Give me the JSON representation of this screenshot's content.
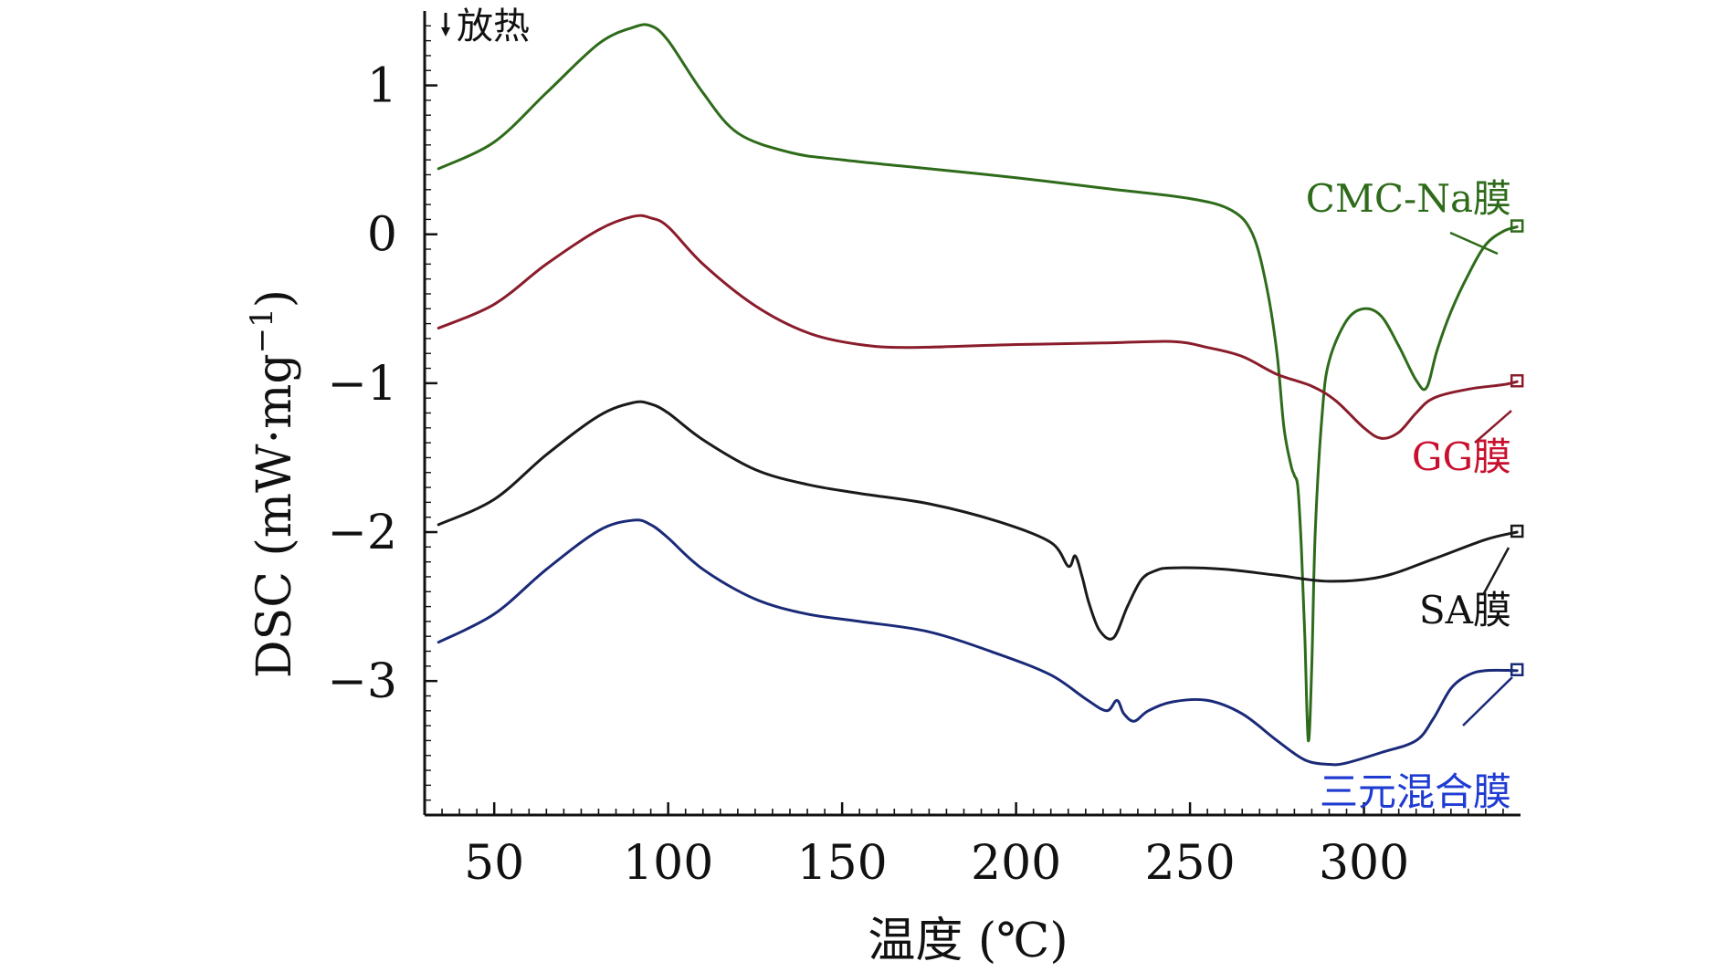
{
  "chart_data": {
    "type": "line",
    "xlabel": "温度 (℃)",
    "ylabel": "DSC (mW·mg",
    "ylabel_superscript": "−1",
    "ylabel_close": ")",
    "annotation": "放热",
    "xlim": [
      30,
      345
    ],
    "ylim": [
      -3.9,
      1.5
    ],
    "x_ticks": [
      50,
      100,
      150,
      200,
      250,
      300
    ],
    "y_ticks": [
      1,
      0,
      -1,
      -2,
      -3
    ],
    "y_tick_labels": [
      "1",
      "0",
      "−1",
      "−2",
      "−3"
    ],
    "grid": false,
    "series": [
      {
        "name": "CMC-Na膜",
        "color": "#2e6b1a",
        "label_color": "#2e6b1a",
        "x": [
          34,
          50,
          65,
          80,
          90,
          95,
          100,
          110,
          120,
          135,
          150,
          175,
          200,
          225,
          250,
          262,
          268,
          272,
          275,
          277,
          279,
          280,
          281,
          282,
          283,
          284,
          285,
          286,
          288,
          290,
          295,
          300,
          305,
          310,
          315,
          318,
          321,
          325,
          330,
          335,
          340,
          344
        ],
        "y": [
          0.44,
          0.62,
          0.95,
          1.28,
          1.39,
          1.4,
          1.3,
          0.95,
          0.68,
          0.55,
          0.5,
          0.44,
          0.38,
          0.31,
          0.24,
          0.16,
          0.0,
          -0.35,
          -0.8,
          -1.3,
          -1.55,
          -1.62,
          -1.7,
          -2.1,
          -2.7,
          -3.4,
          -2.9,
          -2.0,
          -1.2,
          -0.85,
          -0.58,
          -0.5,
          -0.55,
          -0.75,
          -0.98,
          -1.03,
          -0.78,
          -0.52,
          -0.27,
          -0.07,
          0.02,
          0.05
        ]
      },
      {
        "name": "GG膜",
        "color": "#8a1c2b",
        "label_color": "#c8102e",
        "x": [
          34,
          50,
          65,
          80,
          90,
          95,
          100,
          110,
          125,
          140,
          155,
          170,
          200,
          225,
          245,
          255,
          265,
          275,
          285,
          292,
          300,
          305,
          310,
          315,
          320,
          330,
          340,
          344
        ],
        "y": [
          -0.63,
          -0.47,
          -0.2,
          0.03,
          0.12,
          0.11,
          0.05,
          -0.2,
          -0.48,
          -0.66,
          -0.74,
          -0.76,
          -0.74,
          -0.73,
          -0.72,
          -0.76,
          -0.82,
          -0.94,
          -1.02,
          -1.12,
          -1.3,
          -1.37,
          -1.33,
          -1.2,
          -1.1,
          -1.04,
          -1.01,
          -0.99
        ]
      },
      {
        "name": "SA膜",
        "color": "#1a1a1a",
        "label_color": "#111111",
        "x": [
          34,
          50,
          65,
          80,
          90,
          95,
          100,
          110,
          125,
          140,
          155,
          175,
          195,
          210,
          215,
          217,
          219,
          221,
          224,
          228,
          232,
          236,
          240,
          245,
          260,
          275,
          290,
          305,
          320,
          335,
          344
        ],
        "y": [
          -1.95,
          -1.78,
          -1.48,
          -1.22,
          -1.13,
          -1.14,
          -1.2,
          -1.38,
          -1.58,
          -1.68,
          -1.74,
          -1.81,
          -1.93,
          -2.07,
          -2.23,
          -2.16,
          -2.3,
          -2.48,
          -2.66,
          -2.71,
          -2.5,
          -2.32,
          -2.26,
          -2.24,
          -2.25,
          -2.29,
          -2.33,
          -2.3,
          -2.18,
          -2.05,
          -2.0
        ]
      },
      {
        "name": "三元混合膜",
        "color": "#1a2a78",
        "label_color": "#1f3bd1",
        "x": [
          34,
          50,
          65,
          80,
          90,
          95,
          100,
          110,
          125,
          140,
          155,
          175,
          195,
          210,
          220,
          226,
          229,
          231,
          234,
          238,
          245,
          255,
          265,
          275,
          283,
          290,
          295,
          305,
          315,
          320,
          325,
          330,
          335,
          344
        ],
        "y": [
          -2.74,
          -2.55,
          -2.25,
          -1.99,
          -1.92,
          -1.95,
          -2.04,
          -2.25,
          -2.45,
          -2.55,
          -2.6,
          -2.67,
          -2.82,
          -2.96,
          -3.12,
          -3.2,
          -3.13,
          -3.22,
          -3.27,
          -3.2,
          -3.14,
          -3.13,
          -3.22,
          -3.4,
          -3.53,
          -3.56,
          -3.55,
          -3.48,
          -3.4,
          -3.25,
          -3.05,
          -2.96,
          -2.93,
          -2.93
        ]
      }
    ]
  }
}
